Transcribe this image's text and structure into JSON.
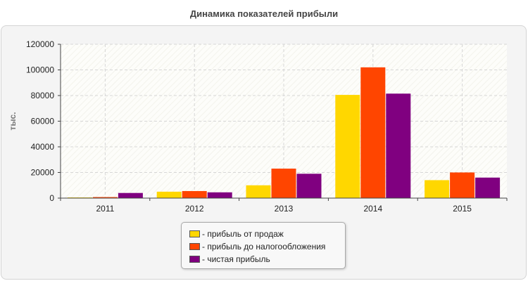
{
  "title": "Динамика показателей прибыли",
  "legend_prefix": "-",
  "chart_data": {
    "type": "bar",
    "title": "Динамика показателей прибыли",
    "xlabel": "",
    "ylabel": "тыс.",
    "ylim": [
      0,
      120000
    ],
    "yticks": [
      0,
      20000,
      40000,
      60000,
      80000,
      100000,
      120000
    ],
    "grid": true,
    "legend_position": "bottom",
    "categories": [
      "2011",
      "2012",
      "2013",
      "2014",
      "2015"
    ],
    "series": [
      {
        "name": "прибыль от продаж",
        "color": "#ffd700",
        "values": [
          500,
          5000,
          10000,
          80500,
          14000
        ]
      },
      {
        "name": "прибыль до налогообложения",
        "color": "#ff4500",
        "values": [
          800,
          5500,
          23000,
          102000,
          20000
        ]
      },
      {
        "name": "чистая прибыль",
        "color": "#800080",
        "values": [
          4000,
          4500,
          19000,
          81500,
          16000
        ]
      }
    ]
  }
}
